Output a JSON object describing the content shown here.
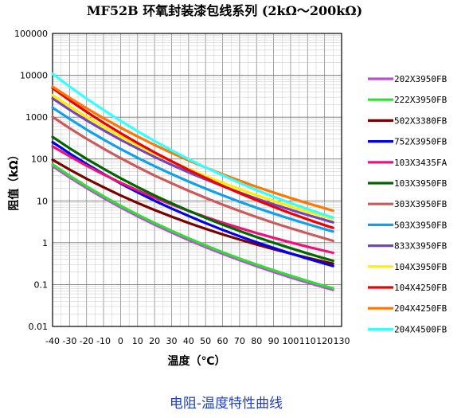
{
  "chart_data": {
    "type": "line",
    "title": "MF52B 环氧封装漆包线系列 (2kΩ～200kΩ)",
    "subtitle": "电阻-温度特性曲线",
    "xlabel": "温度（℃）",
    "ylabel": "阻值（kΩ）",
    "xlim": [
      -40,
      130
    ],
    "ylim": [
      0.01,
      100000
    ],
    "yscale": "log",
    "grid": true,
    "legend_position": "right",
    "x_ticks": [
      -40,
      -30,
      -20,
      -10,
      0,
      10,
      20,
      30,
      40,
      50,
      60,
      70,
      80,
      90,
      100,
      110,
      120,
      130
    ],
    "x_tick_labels": [
      "-40",
      "-30",
      "-20",
      "-10",
      "0",
      "10",
      "20",
      "30",
      "40",
      "50",
      "60",
      "70",
      "80",
      "90",
      "100",
      "110",
      "120",
      "130"
    ],
    "y_ticks": [
      0.01,
      0.1,
      1,
      10,
      100,
      1000,
      10000,
      100000
    ],
    "y_tick_labels": [
      "0.01",
      "0.1",
      "1",
      "10",
      "100",
      "1000",
      "10000",
      "100000"
    ],
    "x": [
      -40,
      -30,
      -20,
      -10,
      0,
      10,
      20,
      30,
      40,
      50,
      60,
      70,
      80,
      90,
      100,
      110,
      120,
      125
    ],
    "series": [
      {
        "name": "202X3950FB",
        "color": "#b84fd9",
        "values": [
          67.5,
          36.3,
          20.3,
          11.7,
          6.97,
          4.28,
          2.7,
          1.75,
          1.16,
          0.785,
          0.542,
          0.382,
          0.274,
          0.2,
          0.148,
          0.111,
          0.085,
          0.075
        ]
      },
      {
        "name": "222X3950FB",
        "color": "#33dd33",
        "values": [
          74.3,
          40.0,
          22.3,
          12.9,
          7.66,
          4.71,
          2.97,
          1.93,
          1.28,
          0.864,
          0.596,
          0.42,
          0.301,
          0.22,
          0.163,
          0.122,
          0.093,
          0.082
        ]
      },
      {
        "name": "502X3380FB",
        "color": "#7a0000",
        "values": [
          96.1,
          56.0,
          33.8,
          21.1,
          13.5,
          8.92,
          6.04,
          4.19,
          2.97,
          2.15,
          1.58,
          1.19,
          0.905,
          0.7,
          0.55,
          0.437,
          0.351,
          0.317
        ]
      },
      {
        "name": "752X3950FB",
        "color": "#0000ee",
        "values": [
          253,
          136,
          75.9,
          43.9,
          26.1,
          16.0,
          10.1,
          6.57,
          4.36,
          2.94,
          2.03,
          1.43,
          1.03,
          0.75,
          0.555,
          0.416,
          0.317,
          0.278
        ]
      },
      {
        "name": "103X3435FA",
        "color": "#ee1177",
        "values": [
          200,
          116,
          69.3,
          42.8,
          27.2,
          17.8,
          11.9,
          8.2,
          5.76,
          4.13,
          3.02,
          2.25,
          1.7,
          1.31,
          1.02,
          0.803,
          0.641,
          0.576
        ]
      },
      {
        "name": "103X3950FB",
        "color": "#006600",
        "values": [
          338,
          181,
          101,
          58.5,
          34.8,
          21.4,
          13.5,
          8.76,
          5.81,
          3.93,
          2.71,
          1.91,
          1.37,
          1.0,
          0.741,
          0.556,
          0.422,
          0.371
        ]
      },
      {
        "name": "303X3950FB",
        "color": "#cc5a5a",
        "values": [
          1013,
          545,
          304,
          176,
          105,
          64.2,
          40.5,
          26.3,
          17.4,
          11.8,
          8.13,
          5.72,
          4.1,
          2.99,
          2.22,
          1.67,
          1.27,
          1.11
        ]
      },
      {
        "name": "503X3950FB",
        "color": "#11a0ee",
        "values": [
          1688,
          908,
          507,
          293,
          174,
          107,
          67.5,
          43.8,
          29.0,
          19.6,
          13.6,
          9.53,
          6.83,
          4.99,
          3.7,
          2.78,
          2.11,
          1.85
        ]
      },
      {
        "name": "833X3950FB",
        "color": "#7744bb",
        "values": [
          2801,
          1507,
          841,
          486,
          289,
          178,
          112,
          72.7,
          48.2,
          32.6,
          22.5,
          15.8,
          11.3,
          8.28,
          6.14,
          4.61,
          3.51,
          3.07
        ]
      },
      {
        "name": "104X3950FB",
        "color": "#ffee00",
        "values": [
          3375,
          1816,
          1013,
          586,
          348,
          214,
          135,
          87.6,
          58.1,
          39.3,
          27.1,
          19.1,
          13.7,
          9.98,
          7.4,
          5.56,
          4.23,
          3.71
        ]
      },
      {
        "name": "104X4250FB",
        "color": "#ee0000",
        "values": [
          4935,
          2523,
          1337,
          733,
          414,
          241,
          144,
          88.2,
          55.2,
          35.3,
          23.0,
          15.3,
          10.4,
          7.18,
          5.05,
          3.62,
          2.63,
          2.26
        ]
      },
      {
        "name": "204X4250FB",
        "color": "#ff7700",
        "values": [
          5370,
          2907,
          1629,
          944,
          562,
          345,
          217,
          140,
          93.0,
          62.7,
          43.2,
          30.4,
          21.7,
          15.8,
          11.7,
          8.77,
          6.67,
          5.84
        ]
      },
      {
        "name": "204X4500FB",
        "color": "#33ffff",
        "values": [
          10845,
          5397,
          2783,
          1483,
          816,
          462,
          270,
          162,
          99.8,
          63.0,
          40.7,
          26.9,
          18.2,
          12.6,
          8.86,
          6.36,
          4.65,
          4.0
        ]
      }
    ]
  }
}
